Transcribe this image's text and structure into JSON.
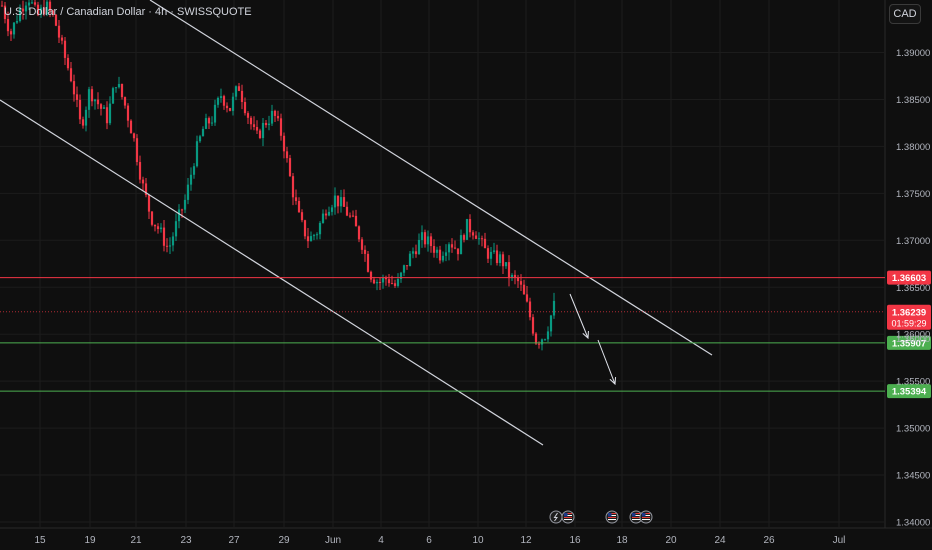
{
  "chart_data": {
    "type": "candlestick",
    "title": "U.S. Dollar / Canadian Dollar · 4h · SWISSQUOTE",
    "currency": "CAD",
    "y_range": [
      1.339,
      1.396
    ],
    "y_ticks": [
      "1.39000",
      "1.38500",
      "1.38000",
      "1.37500",
      "1.37000",
      "1.36500",
      "1.36000",
      "1.35500",
      "1.35000",
      "1.34500",
      "1.34000"
    ],
    "x_ticks": [
      "15",
      "19",
      "21",
      "23",
      "27",
      "29",
      "Jun",
      "4",
      "6",
      "10",
      "12",
      "16",
      "18",
      "20",
      "24",
      "26",
      "Jul"
    ],
    "horizontal_levels": [
      {
        "label": "1.36603",
        "value": 1.36603,
        "color": "#f23645"
      },
      {
        "label": "1.35907",
        "value": 1.35907,
        "color": "#4caf50"
      },
      {
        "label": "1.35394",
        "value": 1.35394,
        "color": "#4caf50"
      }
    ],
    "last_price": {
      "label": "1.36239",
      "countdown": "01:59:29",
      "value": 1.36239,
      "color": "#f23645"
    },
    "extra_price_label": "1.36000",
    "colors": {
      "up": "#089981",
      "down": "#f23645",
      "background": "#0f0f0f",
      "grid": "#1c1c1c",
      "channel": "#d1d4dc"
    },
    "event_icons": [
      "lightning-icon",
      "us-flag-icon",
      "us-flag-icon",
      "us-flag-icon",
      "us-flag-icon"
    ],
    "channel_lines": [
      {
        "from_date": "May 19",
        "from_value": 1.3995,
        "to_date": "Jun 22",
        "to_value": 1.3578
      },
      {
        "from_date": "May 14",
        "from_value": 1.3855,
        "to_date": "Jun 14",
        "to_value": 1.3482
      }
    ],
    "projection_arrows": [
      {
        "from_value": 1.3645,
        "to_value": 1.3592
      },
      {
        "from_value": 1.359,
        "to_value": 1.3545
      }
    ],
    "price_path": [
      1.395,
      1.392,
      1.3945,
      1.396,
      1.3938,
      1.395,
      1.3935,
      1.39,
      1.387,
      1.382,
      1.386,
      1.3845,
      1.383,
      1.387,
      1.3845,
      1.381,
      1.376,
      1.3725,
      1.371,
      1.369,
      1.372,
      1.3745,
      1.379,
      1.382,
      1.383,
      1.3855,
      1.384,
      1.3865,
      1.3835,
      1.3808,
      1.3825,
      1.3835,
      1.381,
      1.376,
      1.372,
      1.37,
      1.371,
      1.3735,
      1.3745,
      1.3735,
      1.372,
      1.37,
      1.3665,
      1.3655,
      1.366,
      1.365,
      1.3672,
      1.369,
      1.3702,
      1.3695,
      1.3685,
      1.37,
      1.369,
      1.3715,
      1.371,
      1.369,
      1.3682,
      1.368,
      1.366,
      1.3655,
      1.3628,
      1.3592,
      1.36,
      1.363
    ]
  }
}
